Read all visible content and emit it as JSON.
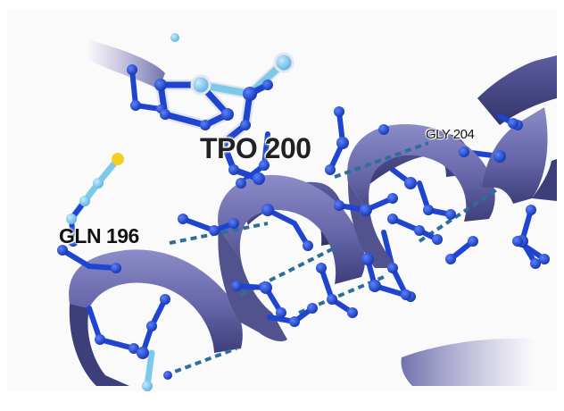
{
  "scene": {
    "labels": {
      "tpo": "TPO 200",
      "gln": "GLN 196",
      "gly": "GLY 204"
    },
    "colors": {
      "background": "#fafafa",
      "helix": "#6a6ab0",
      "helix_dark": "#3f3f7e",
      "atom_blue": "#1f45d0",
      "atom_light": "#7ec8e8",
      "sulfur": "#f0d020",
      "hbond": "#2c6f9c"
    }
  }
}
